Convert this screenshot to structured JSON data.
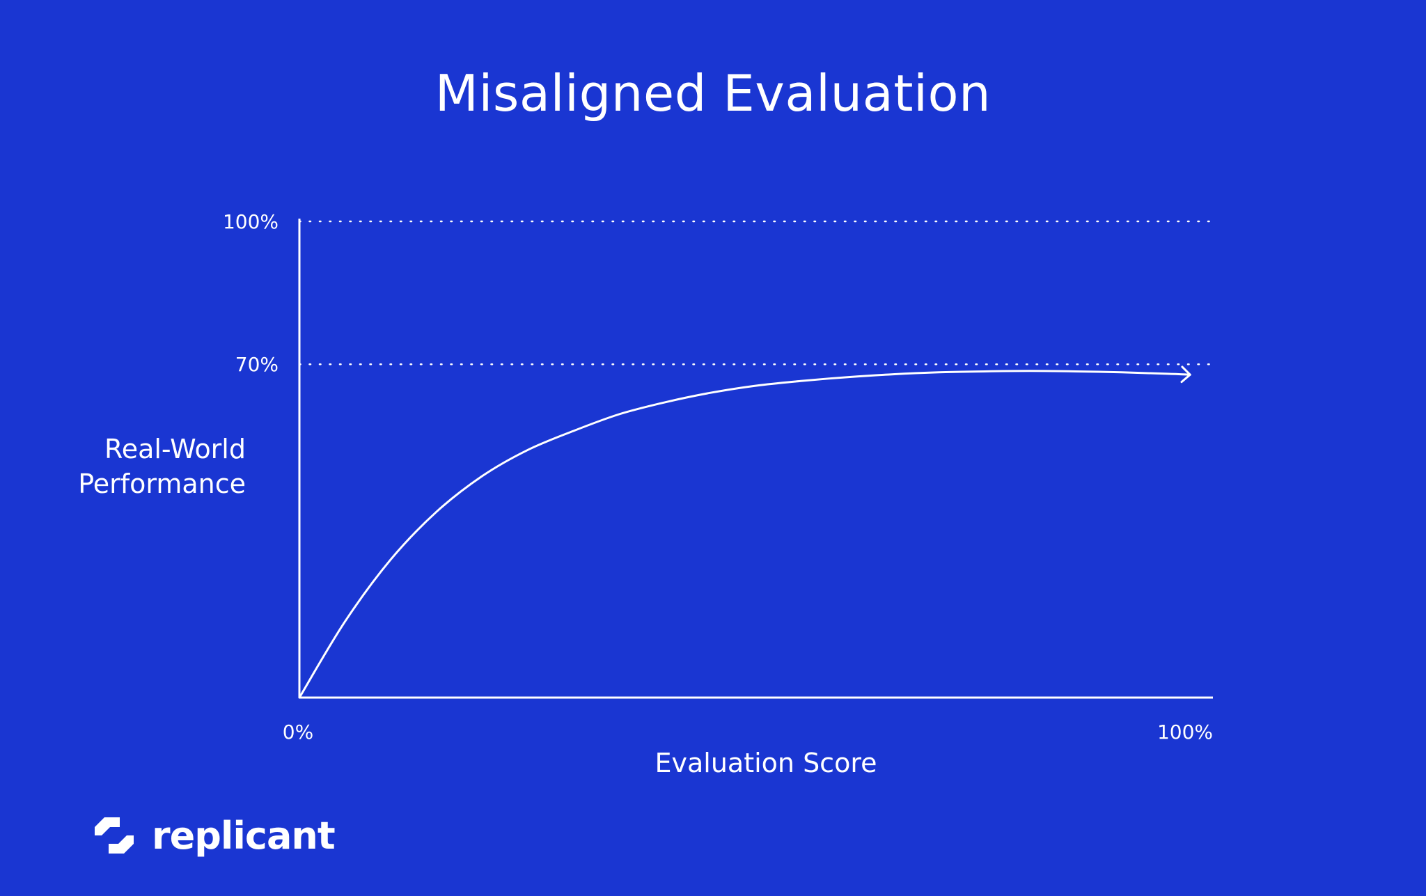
{
  "title": "Misaligned Evaluation",
  "brand": {
    "name": "replicant",
    "logo_icon": "replicant-logo-icon"
  },
  "colors": {
    "background": "#1a36d2",
    "foreground": "#ffffff"
  },
  "chart_data": {
    "type": "line",
    "title": "Misaligned Evaluation",
    "xlabel": "Evaluation Score",
    "ylabel": "Real-World Performance",
    "ylabel_lines": [
      "Real-World",
      "Performance"
    ],
    "xlim": [
      0,
      100
    ],
    "ylim": [
      0,
      100
    ],
    "x_tick_labels": [
      "0%",
      "100%"
    ],
    "y_tick_labels": [
      "70%",
      "100%"
    ],
    "reference_lines": [
      {
        "axis": "y",
        "value": 100,
        "style": "dotted"
      },
      {
        "axis": "y",
        "value": 70,
        "style": "dotted"
      }
    ],
    "series": [
      {
        "x": [
          0,
          5,
          10,
          15,
          20,
          25,
          30,
          35,
          40,
          45,
          50,
          55,
          60,
          65,
          70,
          75,
          80,
          85,
          90,
          95,
          97.5
        ],
        "y": [
          0,
          16,
          29,
          39,
          46.5,
          52,
          56,
          59.5,
          62,
          64,
          65.5,
          66.5,
          67.3,
          67.9,
          68.3,
          68.5,
          68.6,
          68.5,
          68.3,
          68.0,
          67.8
        ],
        "end_marker": "arrow"
      }
    ],
    "grid": false,
    "legend": "none"
  }
}
